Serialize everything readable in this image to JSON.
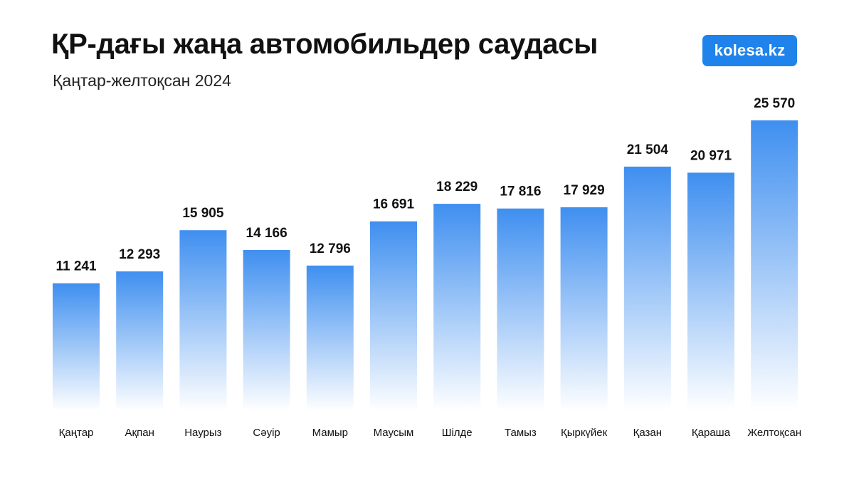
{
  "header": {
    "title": "ҚР-дағы жаңа автомобильдер саудасы",
    "subtitle": "Қаңтар-желтоқсан 2024",
    "brand": "kolesa.kz"
  },
  "colors": {
    "bar_top": "#3f8ff0",
    "bar_bottom": "#ffffff",
    "brand": "#1f83eb"
  },
  "chart_data": {
    "type": "bar",
    "title": "ҚР-дағы жаңа автомобильдер саудасы",
    "subtitle": "Қаңтар-желтоқсан 2024",
    "xlabel": "",
    "ylabel": "",
    "grid": false,
    "ylim": [
      0,
      25570
    ],
    "categories": [
      "Қаңтар",
      "Ақпан",
      "Наурыз",
      "Сәуір",
      "Мамыр",
      "Маусым",
      "Шілде",
      "Тамыз",
      "Қыркүйек",
      "Қазан",
      "Қараша",
      "Желтоқсан"
    ],
    "values": [
      11241,
      12293,
      15905,
      14166,
      12796,
      16691,
      18229,
      17816,
      17929,
      21504,
      20971,
      25570
    ],
    "value_labels": [
      "11 241",
      "12 293",
      "15 905",
      "14 166",
      "12 796",
      "16 691",
      "18 229",
      "17 816",
      "17 929",
      "21 504",
      "20 971",
      "25 570"
    ]
  }
}
